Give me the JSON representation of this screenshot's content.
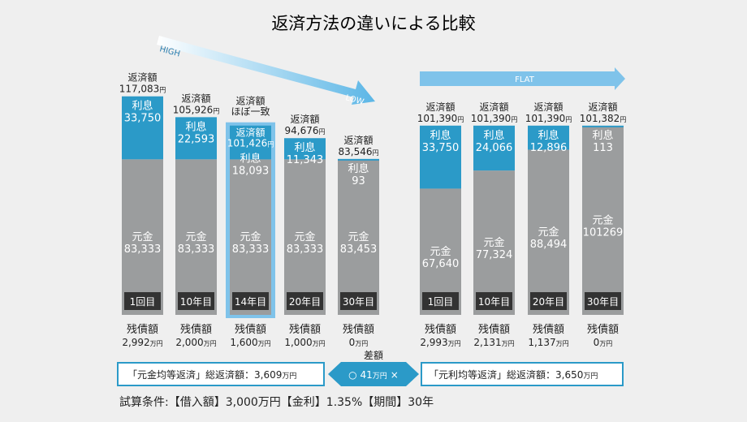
{
  "title": "返済方法の違いによる比較",
  "colors": {
    "principal": "#9b9d9e",
    "interest": "#2b9ac8",
    "highlight": "#7fc3ea",
    "box_border": "#2b9ac8",
    "text": "#222222",
    "background": "#efefef"
  },
  "arrows": {
    "high_label": "HIGH",
    "low_label": "LOW",
    "flat_label": "FLAT"
  },
  "labels": {
    "repay": "返済額",
    "interest": "利息",
    "principal": "元金",
    "remain": "残債額",
    "yen": "円",
    "man_yen": "万円",
    "highlight_note": "ほぼ一致"
  },
  "chart_data": [
    {
      "type": "bar",
      "name": "元金均等返済",
      "unit": "円",
      "categories": [
        "1回目",
        "10年目",
        "14年目",
        "20年目",
        "30年目"
      ],
      "series": [
        {
          "name": "元金",
          "values": [
            83333,
            83333,
            83333,
            83333,
            83453
          ]
        },
        {
          "name": "利息",
          "values": [
            33750,
            22593,
            18093,
            11343,
            93
          ]
        }
      ],
      "repay_totals": [
        "117,083",
        "105,926",
        "101,426",
        "94,676",
        "83,546"
      ],
      "principal_text": [
        "83,333",
        "83,333",
        "83,333",
        "83,333",
        "83,453"
      ],
      "interest_text": [
        "33,750",
        "22,593",
        "18,093",
        "11,343",
        "93"
      ],
      "remaining": [
        "2,992",
        "2,000",
        "1,600",
        "1,000",
        "0"
      ],
      "highlight_index": 2
    },
    {
      "type": "bar",
      "name": "元利均等返済",
      "unit": "円",
      "categories": [
        "1回目",
        "10年目",
        "20年目",
        "30年目"
      ],
      "series": [
        {
          "name": "元金",
          "values": [
            67640,
            77324,
            88494,
            101269
          ]
        },
        {
          "name": "利息",
          "values": [
            33750,
            24066,
            12896,
            113
          ]
        }
      ],
      "repay_totals": [
        "101,390",
        "101,390",
        "101,390",
        "101,382"
      ],
      "principal_text": [
        "67,640",
        "77,324",
        "88,494",
        "101269"
      ],
      "interest_text": [
        "33,750",
        "24,066",
        "12,896",
        "113"
      ],
      "remaining": [
        "2,993",
        "2,131",
        "1,137",
        "0"
      ]
    }
  ],
  "summary": {
    "left_text": "「元金均等返済」総返済額：3,609",
    "right_text": "「元利均等返済」総返済額：3,650",
    "unit": "万円",
    "diff_label": "差額",
    "diff_value": "○ 41",
    "diff_unit": "万円",
    "diff_mark": "×"
  },
  "conditions": "試算条件:【借入額】3,000万円【金利】1.35%【期間】30年"
}
